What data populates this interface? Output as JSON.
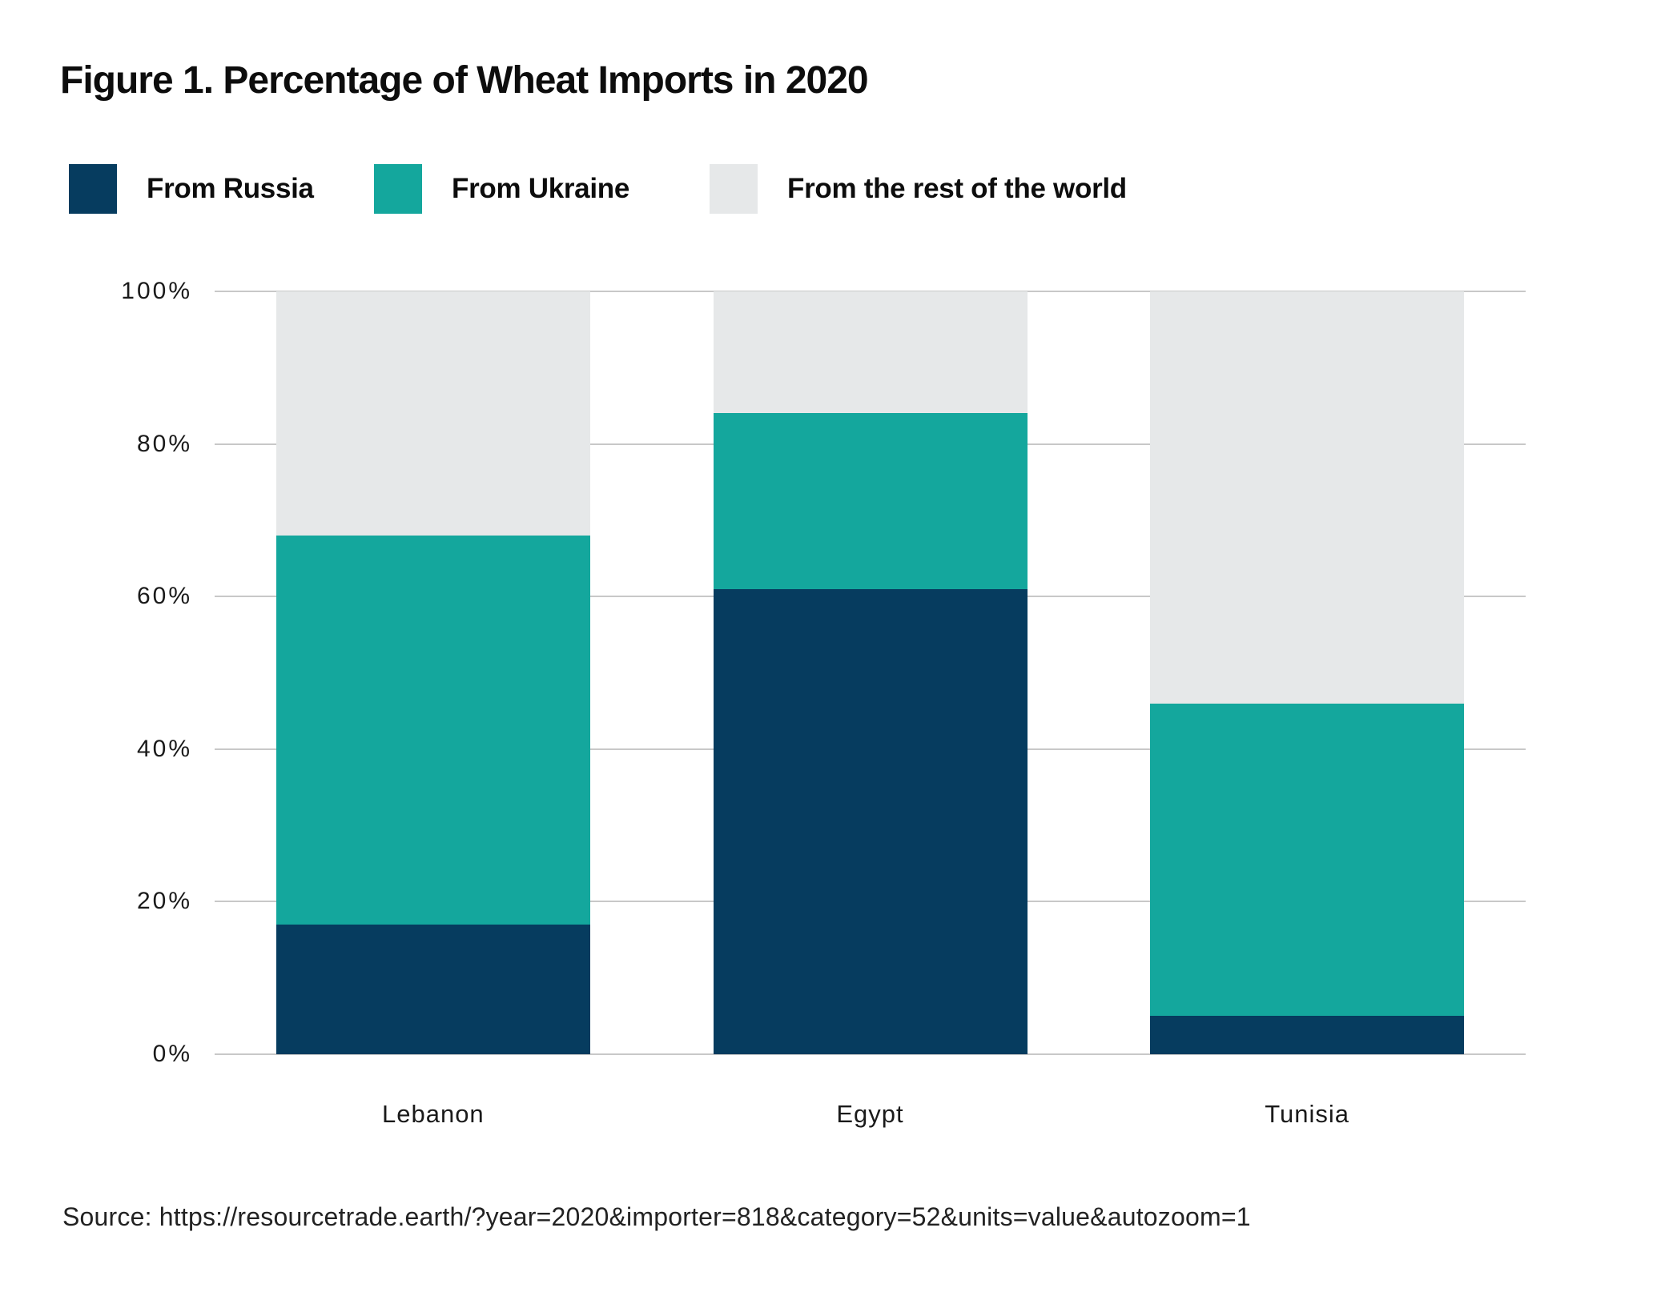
{
  "figure": {
    "title": "Figure 1. Percentage of Wheat Imports in 2020"
  },
  "chart_data": {
    "type": "bar",
    "stacked": true,
    "title": "Figure 1. Percentage of Wheat Imports in 2020",
    "categories": [
      "Lebanon",
      "Egypt",
      "Tunisia"
    ],
    "series": [
      {
        "name": "From Russia",
        "color": "#063c5f",
        "values": [
          17,
          61,
          5
        ]
      },
      {
        "name": "From Ukraine",
        "color": "#14a79d",
        "values": [
          51,
          23,
          41
        ]
      },
      {
        "name": "From the rest of the world",
        "color": "#e6e8e9",
        "values": [
          32,
          16,
          54
        ]
      }
    ],
    "unit": "%",
    "ylim": [
      0,
      100
    ],
    "yticks": [
      0,
      20,
      40,
      60,
      80,
      100
    ],
    "ytick_labels": [
      "0%",
      "20%",
      "40%",
      "60%",
      "80%",
      "100%"
    ],
    "grid": true,
    "gridline_color": "#c8c8c8",
    "legend_position": "top"
  },
  "source": {
    "text": "Source: https://resourcetrade.earth/?year=2020&importer=818&category=52&units=value&autozoom=1"
  }
}
